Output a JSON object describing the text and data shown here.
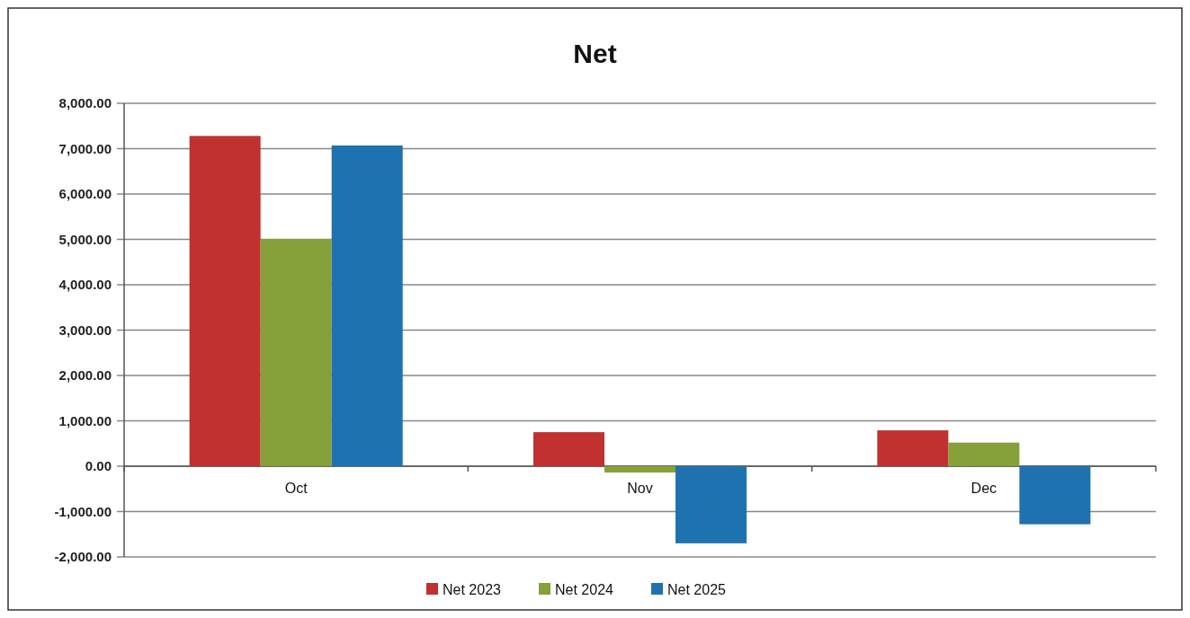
{
  "chart_data": {
    "type": "bar",
    "title": "Net",
    "categories": [
      "Oct",
      "Nov",
      "Dec"
    ],
    "series": [
      {
        "name": "Net 2023",
        "color": "#c0312f",
        "values": [
          7280,
          750,
          790
        ]
      },
      {
        "name": "Net 2024",
        "color": "#86a03a",
        "values": [
          5010,
          -140,
          520
        ]
      },
      {
        "name": "Net 2025",
        "color": "#1f72b0",
        "values": [
          7070,
          -1700,
          -1280
        ]
      }
    ],
    "ylim": [
      -2000,
      8000
    ],
    "yticks": [
      {
        "value": -2000,
        "label": "-2,000.00"
      },
      {
        "value": -1000,
        "label": "-1,000.00"
      },
      {
        "value": 0,
        "label": "0.00"
      },
      {
        "value": 1000,
        "label": "1,000.00"
      },
      {
        "value": 2000,
        "label": "2,000.00"
      },
      {
        "value": 3000,
        "label": "3,000.00"
      },
      {
        "value": 4000,
        "label": "4,000.00"
      },
      {
        "value": 5000,
        "label": "5,000.00"
      },
      {
        "value": 6000,
        "label": "6,000.00"
      },
      {
        "value": 7000,
        "label": "7,000.00"
      },
      {
        "value": 8000,
        "label": "8,000.00"
      }
    ],
    "grid": "y",
    "legend": "bottom"
  }
}
